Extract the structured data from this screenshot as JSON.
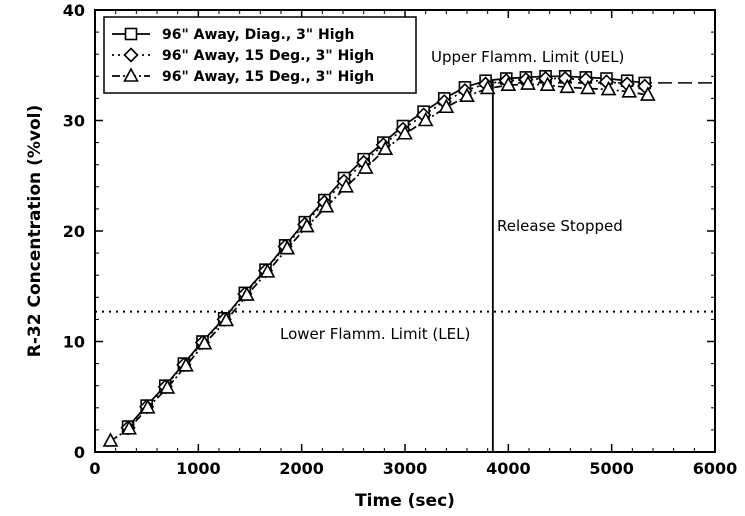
{
  "chart_data": {
    "type": "line",
    "title": "",
    "xlabel": "Time (sec)",
    "ylabel": "R-32 Concentration (%vol)",
    "xlim": [
      0,
      6000
    ],
    "ylim": [
      0,
      40
    ],
    "xticks": [
      0,
      1000,
      2000,
      3000,
      4000,
      5000,
      6000
    ],
    "yticks": [
      0,
      10,
      20,
      30,
      40
    ],
    "grid": false,
    "legend_position": "top-left",
    "series": [
      {
        "name": "96\" Away, Diag., 3\" High",
        "marker": "square",
        "line_style": "solid",
        "x": [
          320,
          500,
          680,
          860,
          1040,
          1250,
          1450,
          1650,
          1840,
          2030,
          2220,
          2410,
          2600,
          2790,
          2980,
          3180,
          3380,
          3580,
          3780,
          3980,
          4170,
          4360,
          4550,
          4750,
          4950,
          5150,
          5320
        ],
        "y": [
          2.3,
          4.2,
          6.0,
          8.0,
          10.0,
          12.1,
          14.4,
          16.5,
          18.7,
          20.8,
          22.8,
          24.8,
          26.5,
          28.0,
          29.5,
          30.8,
          32.0,
          33.0,
          33.6,
          33.8,
          33.9,
          34.0,
          34.0,
          33.9,
          33.8,
          33.6,
          33.4
        ]
      },
      {
        "name": "96\" Away, 15 Deg., 3\" High",
        "marker": "diamond",
        "line_style": "dotted",
        "x": [
          320,
          500,
          680,
          860,
          1040,
          1250,
          1450,
          1650,
          1840,
          2030,
          2220,
          2410,
          2600,
          2790,
          2980,
          3180,
          3380,
          3580,
          3780,
          3980,
          4170,
          4360,
          4550,
          4750,
          4950,
          5150,
          5320
        ],
        "y": [
          2.2,
          4.1,
          5.9,
          7.9,
          9.9,
          12.0,
          14.3,
          16.4,
          18.6,
          20.6,
          22.6,
          24.5,
          26.2,
          27.8,
          29.2,
          30.5,
          31.7,
          32.7,
          33.3,
          33.6,
          33.7,
          33.8,
          33.8,
          33.7,
          33.5,
          33.3,
          33.1
        ]
      },
      {
        "name": "96\" Away, 15 Deg., 3\" High",
        "marker": "triangle",
        "line_style": "dashdot",
        "x": [
          150,
          330,
          510,
          700,
          880,
          1060,
          1270,
          1470,
          1670,
          1860,
          2050,
          2240,
          2430,
          2620,
          2810,
          3000,
          3200,
          3400,
          3600,
          3800,
          4000,
          4190,
          4380,
          4570,
          4770,
          4970,
          5170,
          5350
        ],
        "y": [
          1.0,
          2.1,
          4.0,
          5.8,
          7.8,
          9.8,
          11.9,
          14.2,
          16.3,
          18.4,
          20.4,
          22.2,
          24.0,
          25.7,
          27.4,
          28.8,
          30.0,
          31.2,
          32.2,
          32.9,
          33.2,
          33.3,
          33.2,
          33.0,
          32.9,
          32.8,
          32.6,
          32.3
        ]
      }
    ],
    "annotations": {
      "uel_label": "Upper Flamm. Limit (UEL)",
      "uel_value": 33.4,
      "lel_label": "Lower Flamm. Limit (LEL)",
      "lel_value": 12.7,
      "release_label": "Release Stopped",
      "release_time": 3850
    }
  }
}
